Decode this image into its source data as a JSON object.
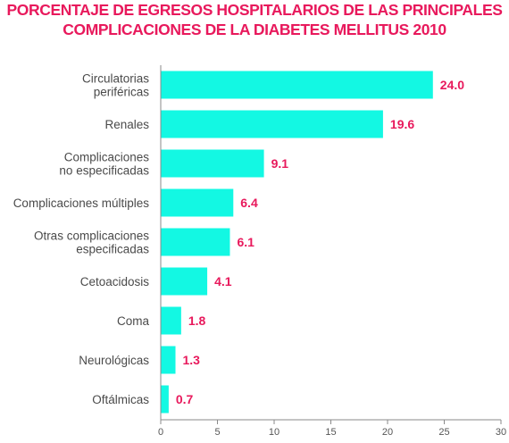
{
  "colors": {
    "bar": "#13F8E3",
    "title": "#E8195C",
    "value": "#E8195C",
    "axis": "#8a8a8a"
  },
  "chart_data": {
    "type": "bar",
    "orientation": "horizontal",
    "title_lines": [
      "PORCENTAJE DE EGRESOS HOSPITALARIOS DE LAS PRINCIPALES",
      "COMPLICACIONES DE LA DIABETES MELLITUS 2010"
    ],
    "categories": [
      [
        "Circulatorias",
        "periféricas"
      ],
      [
        "Renales"
      ],
      [
        "Complicaciones",
        "no especificadas"
      ],
      [
        "Complicaciones múltiples"
      ],
      [
        "Otras complicaciones",
        "especificadas"
      ],
      [
        "Cetoacidosis"
      ],
      [
        "Coma"
      ],
      [
        "Neurológicas"
      ],
      [
        "Oftálmicas"
      ]
    ],
    "values": [
      24.0,
      19.6,
      9.1,
      6.4,
      6.1,
      4.1,
      1.8,
      1.3,
      0.7
    ],
    "value_labels": [
      "24.0",
      "19.6",
      "9.1",
      "6.4",
      "6.1",
      "4.1",
      "1.8",
      "1.3",
      "0.7"
    ],
    "xlim": [
      0,
      30
    ],
    "xticks": [
      0,
      5,
      10,
      15,
      20,
      25,
      30
    ],
    "xtick_labels": [
      "0",
      "5",
      "10",
      "15",
      "20",
      "25",
      "30"
    ],
    "grid": false,
    "legend": "none"
  }
}
